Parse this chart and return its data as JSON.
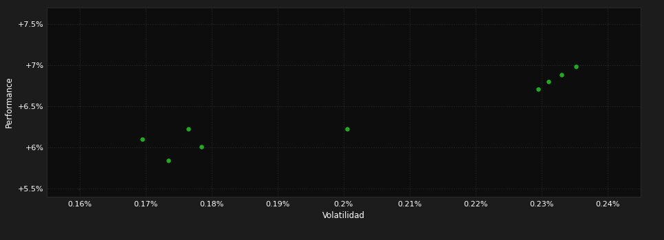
{
  "title": "",
  "xlabel": "Volatilidad",
  "ylabel": "Performance",
  "background_color": "#1c1c1c",
  "plot_bg_color": "#0d0d0d",
  "grid_color": "#2d2d2d",
  "grid_ls": "dotted",
  "text_color": "#ffffff",
  "point_color": "#22aa22",
  "xlim": [
    0.155,
    0.245
  ],
  "ylim": [
    5.4,
    7.7
  ],
  "xticks": [
    0.16,
    0.17,
    0.18,
    0.19,
    0.2,
    0.21,
    0.22,
    0.23,
    0.24
  ],
  "yticks": [
    5.5,
    6.0,
    6.5,
    7.0,
    7.5
  ],
  "ytick_labels": [
    "+5.5%",
    "+6%",
    "+6.5%",
    "+7%",
    "+7.5%"
  ],
  "xtick_labels": [
    "0.16%",
    "0.17%",
    "0.18%",
    "0.19%",
    "0.2%",
    "0.21%",
    "0.22%",
    "0.23%",
    "0.24%"
  ],
  "points_x": [
    0.1695,
    0.1735,
    0.1765,
    0.1785,
    0.2005,
    0.2295,
    0.231,
    0.233,
    0.2352
  ],
  "points_y": [
    6.1,
    5.84,
    6.22,
    6.01,
    6.22,
    6.71,
    6.8,
    6.88,
    6.98
  ]
}
